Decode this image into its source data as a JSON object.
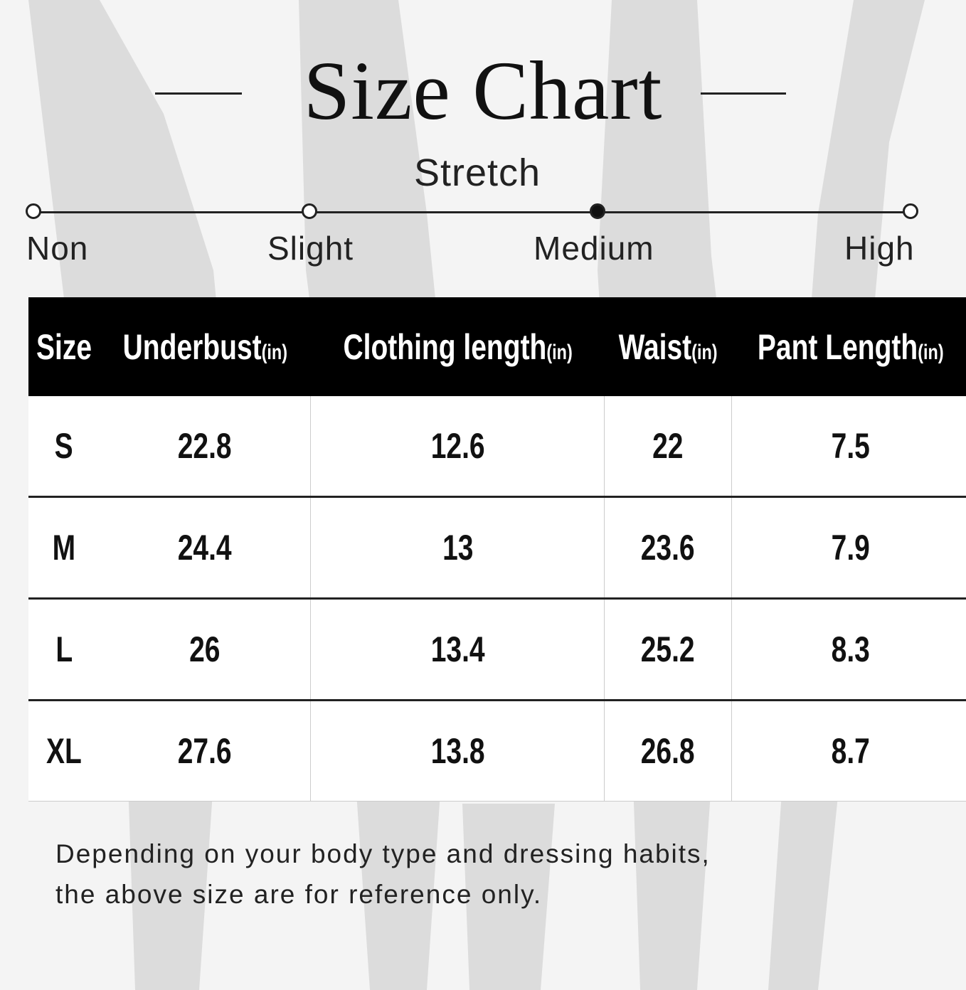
{
  "title": "Size Chart",
  "stretch": {
    "label": "Stretch",
    "levels": [
      "Non",
      "Slight",
      "Medium",
      "High"
    ],
    "selected": "Medium"
  },
  "table": {
    "headers": [
      {
        "label": "Size",
        "unit": ""
      },
      {
        "label": "Underbust",
        "unit": "(in)"
      },
      {
        "label": "Clothing length",
        "unit": "(in)"
      },
      {
        "label": "Waist",
        "unit": "(in)"
      },
      {
        "label": "Pant Length",
        "unit": "(in)"
      }
    ],
    "rows": [
      [
        "S",
        "22.8",
        "12.6",
        "22",
        "7.5"
      ],
      [
        "M",
        "24.4",
        "13",
        "23.6",
        "7.9"
      ],
      [
        "L",
        "26",
        "13.4",
        "25.2",
        "8.3"
      ],
      [
        "XL",
        "27.6",
        "13.8",
        "26.8",
        "8.7"
      ]
    ]
  },
  "note": {
    "line1": "Depending on your body type and dressing habits,",
    "line2": "the above size are for reference only."
  },
  "colors": {
    "header_bg": "#000000",
    "text": "#111111",
    "background": "#f4f4f4"
  }
}
